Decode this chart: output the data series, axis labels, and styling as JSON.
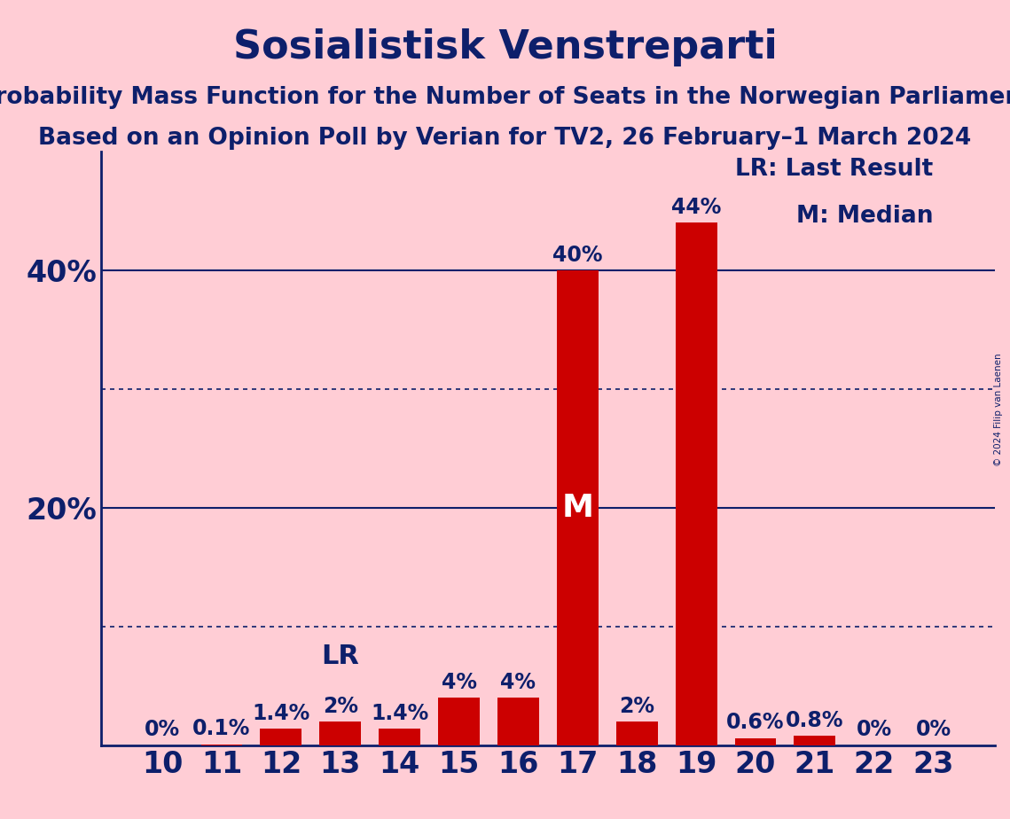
{
  "title": "Sosialistisk Venstreparti",
  "subtitle1": "Probability Mass Function for the Number of Seats in the Norwegian Parliament",
  "subtitle2": "Based on an Opinion Poll by Verian for TV2, 26 February–1 March 2024",
  "copyright": "© 2024 Filip van Laenen",
  "seats": [
    10,
    11,
    12,
    13,
    14,
    15,
    16,
    17,
    18,
    19,
    20,
    21,
    22,
    23
  ],
  "probabilities": [
    0.0,
    0.1,
    1.4,
    2.0,
    1.4,
    4.0,
    4.0,
    40.0,
    2.0,
    44.0,
    0.6,
    0.8,
    0.0,
    0.0
  ],
  "prob_labels": [
    "0%",
    "0.1%",
    "1.4%",
    "2%",
    "1.4%",
    "4%",
    "4%",
    "40%",
    "2%",
    "44%",
    "0.6%",
    "0.8%",
    "0%",
    "0%"
  ],
  "bar_color": "#CC0000",
  "bg_color": "#FFCDD5",
  "text_color": "#0D1F6B",
  "title_fontsize": 32,
  "subtitle_fontsize": 19,
  "axis_tick_fontsize": 24,
  "bar_label_fontsize": 17,
  "lr_label_fontsize": 22,
  "m_label_fontsize": 26,
  "legend_fontsize": 19,
  "median_seat": 17,
  "lr_seat": 13,
  "ytick_labels": [
    "20%",
    "40%"
  ],
  "ytick_values": [
    20,
    40
  ],
  "solid_lines": [
    20,
    40
  ],
  "dotted_lines": [
    10,
    30
  ],
  "ylim": [
    0,
    50
  ],
  "legend_text": [
    "LR: Last Result",
    "M: Median"
  ]
}
